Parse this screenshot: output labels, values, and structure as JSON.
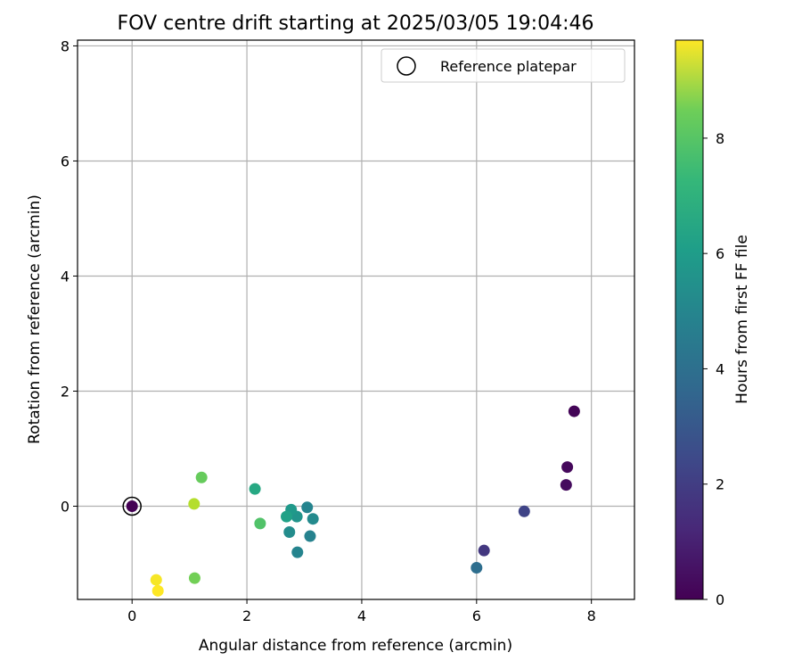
{
  "chart_data": {
    "type": "scatter",
    "title": "FOV centre drift starting at 2025/03/05 19:04:46",
    "xlabel": "Angular distance from reference (arcmin)",
    "ylabel": "Rotation from reference (arcmin)",
    "xlim": [
      -0.95,
      8.75
    ],
    "ylim": [
      -1.62,
      8.1
    ],
    "xticks": [
      0,
      2,
      4,
      6,
      8
    ],
    "yticks": [
      0,
      2,
      4,
      6,
      8
    ],
    "grid": true,
    "legend": {
      "placement": "top-right",
      "entries": [
        "Reference platepar"
      ]
    },
    "colorbar": {
      "label": "Hours from first FF file",
      "colormap": "viridis",
      "range": [
        0,
        9.7
      ],
      "ticks": [
        0,
        2,
        4,
        6,
        8
      ]
    },
    "reference_point": {
      "x": 0.0,
      "y": 0.0
    },
    "points": [
      {
        "x": 0.0,
        "y": 0.0,
        "hours": 0.0
      },
      {
        "x": 7.7,
        "y": 1.65,
        "hours": 0.1
      },
      {
        "x": 7.58,
        "y": 0.68,
        "hours": 0.2
      },
      {
        "x": 7.56,
        "y": 0.37,
        "hours": 0.3
      },
      {
        "x": 6.83,
        "y": -0.09,
        "hours": 2.0
      },
      {
        "x": 6.13,
        "y": -0.77,
        "hours": 1.6
      },
      {
        "x": 6.0,
        "y": -1.07,
        "hours": 3.5
      },
      {
        "x": 3.05,
        "y": -0.02,
        "hours": 4.4
      },
      {
        "x": 3.15,
        "y": -0.22,
        "hours": 4.6
      },
      {
        "x": 3.1,
        "y": -0.52,
        "hours": 4.3
      },
      {
        "x": 2.88,
        "y": -0.8,
        "hours": 4.4
      },
      {
        "x": 2.74,
        "y": -0.45,
        "hours": 4.7
      },
      {
        "x": 2.87,
        "y": -0.18,
        "hours": 5.0
      },
      {
        "x": 2.77,
        "y": -0.06,
        "hours": 5.2
      },
      {
        "x": 2.69,
        "y": -0.18,
        "hours": 5.5
      },
      {
        "x": 2.14,
        "y": 0.3,
        "hours": 5.8
      },
      {
        "x": 2.23,
        "y": -0.3,
        "hours": 7.0
      },
      {
        "x": 1.21,
        "y": 0.5,
        "hours": 7.4
      },
      {
        "x": 1.09,
        "y": -1.25,
        "hours": 7.6
      },
      {
        "x": 1.08,
        "y": 0.04,
        "hours": 8.6
      },
      {
        "x": 0.42,
        "y": -1.28,
        "hours": 9.6
      },
      {
        "x": 0.45,
        "y": -1.47,
        "hours": 9.7
      }
    ]
  }
}
